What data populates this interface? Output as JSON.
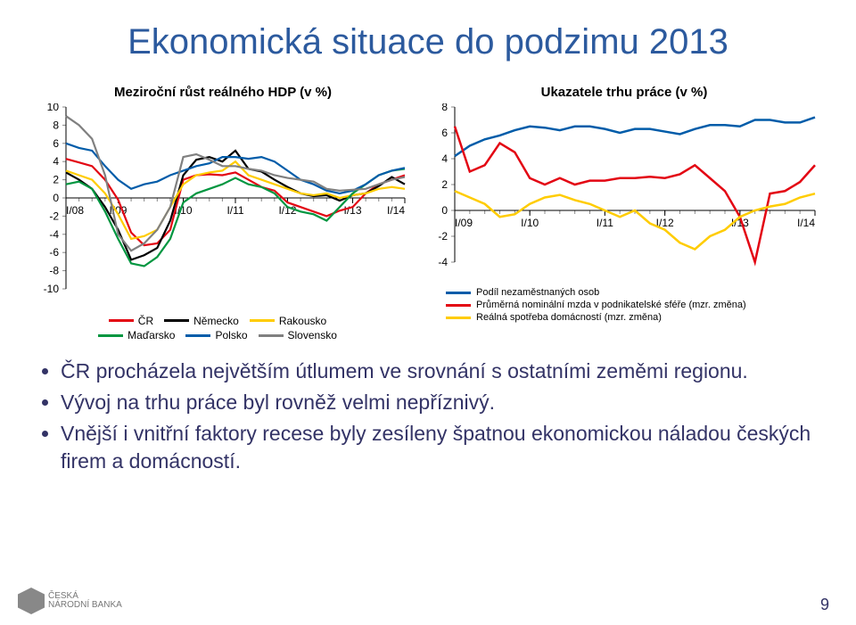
{
  "title": "Ekonomická situace do podzimu 2013",
  "left_chart": {
    "type": "line",
    "title": "Meziroční růst reálného HDP (v %)",
    "xlabels": [
      "I/08",
      "I/09",
      "I/10",
      "I/11",
      "I/12",
      "I/13",
      "I/14"
    ],
    "ylim": [
      -10,
      10
    ],
    "ytick_step": 2,
    "yticks": [
      10,
      8,
      6,
      4,
      2,
      0,
      -2,
      -4,
      -6,
      -8,
      -10
    ],
    "background_color": "#ffffff",
    "axis_color": "#000000",
    "tick_color": "#888888",
    "series": [
      {
        "name": "ČR",
        "color": "#e30613",
        "width": 2.2,
        "values": [
          4.3,
          3.9,
          3.5,
          2.0,
          -0.2,
          -3.8,
          -5.2,
          -5.0,
          -3.5,
          2.0,
          2.5,
          2.6,
          2.5,
          2.8,
          2.0,
          1.2,
          0.8,
          -0.5,
          -1.0,
          -1.5,
          -2.0,
          -1.4,
          -1.0,
          0.5,
          1.5,
          2.0,
          2.5
        ]
      },
      {
        "name": "Německo",
        "color": "#000000",
        "width": 2.2,
        "values": [
          2.8,
          2.0,
          1.0,
          -1.0,
          -3.5,
          -6.8,
          -6.3,
          -5.5,
          -2.5,
          2.5,
          4.2,
          4.5,
          4.0,
          5.2,
          3.2,
          2.9,
          2.0,
          1.2,
          0.5,
          0.2,
          0.3,
          -0.3,
          0.3,
          0.5,
          1.3,
          2.3,
          1.5
        ]
      },
      {
        "name": "Rakousko",
        "color": "#ffcc00",
        "width": 2.2,
        "values": [
          3.0,
          2.5,
          2.0,
          0.5,
          -1.8,
          -4.5,
          -4.2,
          -3.5,
          -1.0,
          1.5,
          2.5,
          2.8,
          3.0,
          4.0,
          2.5,
          2.0,
          1.5,
          1.0,
          0.5,
          0.3,
          0.5,
          0.0,
          0.3,
          0.5,
          1.0,
          1.2,
          1.0
        ]
      },
      {
        "name": "Maďarsko",
        "color": "#009640",
        "width": 2.2,
        "values": [
          1.5,
          1.8,
          1.0,
          -1.5,
          -4.5,
          -7.2,
          -7.5,
          -6.5,
          -4.5,
          -0.5,
          0.5,
          1.0,
          1.5,
          2.2,
          1.5,
          1.2,
          0.5,
          -1.0,
          -1.5,
          -1.8,
          -2.5,
          -1.0,
          0.5,
          1.5,
          2.5,
          3.0,
          3.2
        ]
      },
      {
        "name": "Polsko",
        "color": "#005ca9",
        "width": 2.2,
        "values": [
          6.0,
          5.5,
          5.2,
          3.5,
          2.0,
          1.0,
          1.5,
          1.8,
          2.5,
          3.0,
          3.5,
          3.8,
          4.5,
          4.5,
          4.3,
          4.5,
          4.0,
          3.0,
          2.0,
          1.5,
          0.8,
          0.5,
          0.8,
          1.5,
          2.5,
          3.0,
          3.3
        ]
      },
      {
        "name": "Slovensko",
        "color": "#808080",
        "width": 2.2,
        "values": [
          9.0,
          8.0,
          6.5,
          2.5,
          -4.0,
          -5.8,
          -5.0,
          -3.5,
          -1.0,
          4.5,
          4.8,
          4.2,
          3.5,
          3.5,
          3.2,
          3.0,
          2.5,
          2.2,
          2.0,
          1.8,
          1.0,
          0.8,
          0.9,
          1.0,
          1.5,
          2.0,
          2.3
        ]
      }
    ],
    "legend_rows": [
      [
        {
          "label": "ČR",
          "color": "#e30613"
        },
        {
          "label": "Německo",
          "color": "#000000"
        },
        {
          "label": "Rakousko",
          "color": "#ffcc00"
        }
      ],
      [
        {
          "label": "Maďarsko",
          "color": "#009640"
        },
        {
          "label": "Polsko",
          "color": "#005ca9"
        },
        {
          "label": "Slovensko",
          "color": "#808080"
        }
      ]
    ]
  },
  "right_chart": {
    "type": "line",
    "title": "Ukazatele trhu práce (v %)",
    "xlabels": [
      "I/09",
      "I/10",
      "I/11",
      "I/12",
      "I/13",
      "I/14"
    ],
    "ylim": [
      -4,
      8
    ],
    "ytick_step": 2,
    "yticks": [
      8,
      6,
      4,
      2,
      0,
      -2,
      -4
    ],
    "background_color": "#ffffff",
    "axis_color": "#000000",
    "tick_color": "#888888",
    "series": [
      {
        "name": "unemployment",
        "label": "Podíl nezaměstnaných osob",
        "color": "#005ca9",
        "width": 2.5,
        "values": [
          4.2,
          5.0,
          5.5,
          5.8,
          6.2,
          6.5,
          6.4,
          6.2,
          6.5,
          6.5,
          6.3,
          6.0,
          6.3,
          6.3,
          6.1,
          5.9,
          6.3,
          6.6,
          6.6,
          6.5,
          7.0,
          7.0,
          6.8,
          6.8,
          7.2
        ]
      },
      {
        "name": "wage",
        "label": "Průměrná nominální mzda v podnikatelské sféře (mzr. změna)",
        "color": "#e30613",
        "width": 2.5,
        "values": [
          6.5,
          3.0,
          3.5,
          5.2,
          4.5,
          2.5,
          2.0,
          2.5,
          2.0,
          2.3,
          2.3,
          2.5,
          2.5,
          2.6,
          2.5,
          2.8,
          3.5,
          2.5,
          1.5,
          -0.5,
          -4.0,
          1.3,
          1.5,
          2.2,
          3.5
        ]
      },
      {
        "name": "consumption",
        "label": "Reálná spotřeba domácností (mzr. změna)",
        "color": "#ffcc00",
        "width": 2.5,
        "values": [
          1.5,
          1.0,
          0.5,
          -0.5,
          -0.3,
          0.5,
          1.0,
          1.2,
          0.8,
          0.5,
          0.0,
          -0.5,
          0.0,
          -1.0,
          -1.5,
          -2.5,
          -3.0,
          -2.0,
          -1.5,
          -0.5,
          0.0,
          0.3,
          0.5,
          1.0,
          1.3
        ]
      }
    ]
  },
  "bullets": [
    "ČR procházela největším útlumem ve srovnání s ostatními zeměmi regionu.",
    "Vývoj na trhu práce byl rovněž velmi nepříznivý.",
    "Vnější i vnitřní faktory recese byly zesíleny špatnou ekonomickou náladou českých firem a domácností."
  ],
  "logo_text_top": "ČESKÁ",
  "logo_text_bottom": "NÁRODNÍ BANKA",
  "page_number": "9"
}
